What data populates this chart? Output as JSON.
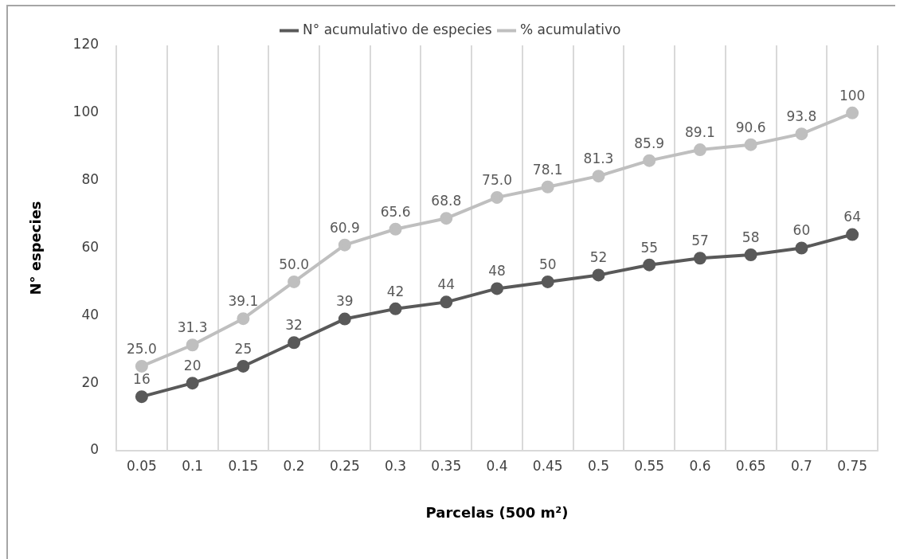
{
  "chart_data": {
    "type": "line",
    "xlabel": "Parcelas (500 m²)",
    "ylabel": "N° especies",
    "categories": [
      "0.05",
      "0.1",
      "0.15",
      "0.2",
      "0.25",
      "0.3",
      "0.35",
      "0.4",
      "0.45",
      "0.5",
      "0.55",
      "0.6",
      "0.65",
      "0.7",
      "0.75"
    ],
    "series": [
      {
        "name": "N° acumulativo de especies",
        "color": "#595959",
        "values": [
          16,
          20,
          25,
          32,
          39,
          42,
          44,
          48,
          50,
          52,
          55,
          57,
          58,
          60,
          64
        ]
      },
      {
        "name": "% acumulativo",
        "color": "#bfbfbf",
        "values": [
          25.0,
          31.3,
          39.1,
          50.0,
          60.9,
          65.6,
          68.8,
          75.0,
          78.1,
          81.3,
          85.9,
          89.1,
          90.6,
          93.8,
          100
        ],
        "value_labels": [
          "25.0",
          "31.3",
          "39.1",
          "50.0",
          "60.9",
          "65.6",
          "68.8",
          "75.0",
          "78.1",
          "81.3",
          "85.9",
          "89.1",
          "90.6",
          "93.8",
          "100"
        ]
      }
    ],
    "ylim": [
      0,
      120
    ],
    "yticks": [
      0,
      20,
      40,
      60,
      80,
      100,
      120
    ],
    "grid": "x",
    "legend": "top",
    "marker": "circle",
    "line_style": "solid",
    "data_labels": true
  }
}
